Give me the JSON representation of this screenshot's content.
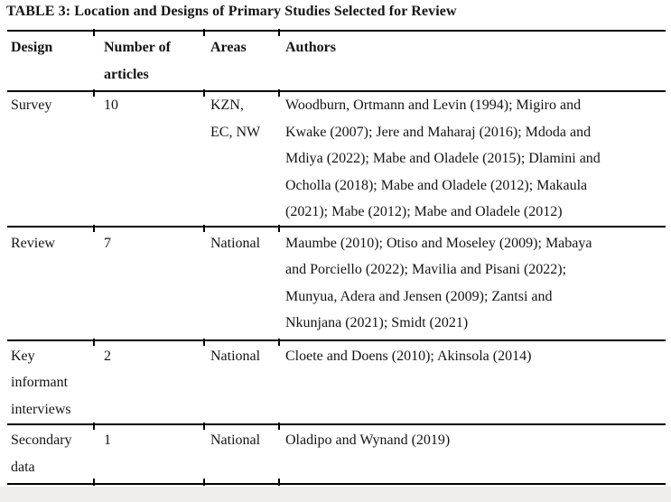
{
  "caption": "TABLE 3: Location and Designs of Primary Studies Selected for Review",
  "table": {
    "headers": [
      "Design",
      [
        "Number of",
        "articles"
      ],
      "Areas",
      "Authors"
    ],
    "rows": [
      {
        "design": "Survey",
        "articles": "10",
        "areas": [
          "KZN,",
          "EC, NW"
        ],
        "authors": [
          "Woodburn, Ortmann and Levin (1994); Migiro and",
          "Kwake (2007); Jere and Maharaj (2016); Mdoda and",
          "Mdiya (2022); Mabe and Oladele (2015); Dlamini and",
          "Ocholla (2018); Mabe and Oladele (2012); Makaula",
          "(2021); Mabe (2012); Mabe and Oladele (2012)"
        ]
      },
      {
        "design": "Review",
        "articles": "7",
        "areas": "National",
        "authors": [
          "Maumbe (2010); Otiso and Moseley (2009); Mabaya",
          "and Porciello (2022); Mavilia and Pisani (2022);",
          "Munyua, Adera and Jensen (2009); Zantsi and",
          "Nkunjana (2021); Smidt (2021)"
        ]
      },
      {
        "design": [
          "Key",
          "informant",
          "interviews"
        ],
        "articles": "2",
        "areas": "National",
        "authors": [
          "Cloete and Doens (2010); Akinsola (2014)"
        ]
      },
      {
        "design": [
          "Secondary",
          "data"
        ],
        "articles": "1",
        "areas": "National",
        "authors": [
          "Oladipo and Wynand (2019)"
        ]
      }
    ]
  },
  "colors": {
    "rule": "#000000",
    "text": "#141414",
    "page_background": "#ffffff",
    "bottom_margin_band": "#f0eded"
  }
}
